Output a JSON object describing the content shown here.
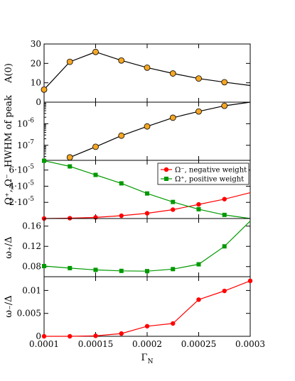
{
  "colors": {
    "orange": "#F5A623",
    "red": "#FF0000",
    "green": "#009900",
    "black": "#000000"
  },
  "chart_data": [
    {
      "type": "line",
      "ylabel": "A(0)",
      "xlim": [
        0.0001,
        0.0003
      ],
      "ylim": [
        0,
        30
      ],
      "yticks": [
        {
          "value": 0,
          "label": "0"
        },
        {
          "value": 10,
          "label": "10"
        },
        {
          "value": 20,
          "label": "20"
        },
        {
          "value": 30,
          "label": "30"
        }
      ],
      "series": [
        {
          "color": "#000000",
          "marker": "circle",
          "marker_fill": "#F5A623",
          "x": [
            0.0001,
            0.000125,
            0.00015,
            0.000175,
            0.0002,
            0.000225,
            0.00025,
            0.000275,
            0.0003
          ],
          "y": [
            6.5,
            20.8,
            25.9,
            21.5,
            17.8,
            14.8,
            12.2,
            10.3,
            8.6
          ],
          "markers": [
            true,
            true,
            true,
            true,
            true,
            true,
            true,
            true,
            false
          ]
        }
      ]
    },
    {
      "type": "line",
      "ylabel": "HWHM of peak",
      "yscale": "log",
      "xlim": [
        0.0001,
        0.0003
      ],
      "ylim": [
        2e-08,
        1e-05
      ],
      "yticks": [
        {
          "value": 1e-07,
          "label": "10",
          "exp": "-7"
        },
        {
          "value": 1e-06,
          "label": "10",
          "exp": "-6"
        }
      ],
      "series": [
        {
          "color": "#000000",
          "marker": "circle",
          "marker_fill": "#F5A623",
          "x": [
            0.000125,
            0.00015,
            0.000175,
            0.0002,
            0.000225,
            0.00025,
            0.000275,
            0.0003
          ],
          "y": [
            2.75e-08,
            8.5e-08,
            2.8e-07,
            7.5e-07,
            1.9e-06,
            3.7e-06,
            6.8e-06,
            1e-05
          ],
          "markers": [
            true,
            true,
            true,
            true,
            true,
            true,
            true,
            false
          ]
        }
      ]
    },
    {
      "type": "line",
      "ylabel": "Ω⁺, Ω⁻",
      "xlim": [
        0.0001,
        0.0003
      ],
      "ylim": [
        0,
        7.2e-05
      ],
      "yticks": [
        {
          "value": 2e-05,
          "label": "2·10",
          "exp": "-5"
        },
        {
          "value": 4e-05,
          "label": "4·10",
          "exp": "-5"
        },
        {
          "value": 6e-05,
          "label": "6·10",
          "exp": "-5"
        }
      ],
      "legend": {
        "position": "top-right"
      },
      "series": [
        {
          "name": "Ω⁻, negative weight",
          "color": "#FF0000",
          "marker": "circle",
          "marker_fill": "#FF0000",
          "x": [
            0.0001,
            0.000125,
            0.00015,
            0.000175,
            0.0002,
            0.000225,
            0.00025,
            0.000275,
            0.0003
          ],
          "y": [
            0.0,
            4e-07,
            1.4e-06,
            3.5e-06,
            6.5e-06,
            1.1e-05,
            1.75e-05,
            2.4e-05,
            3.2e-05
          ],
          "markers": [
            true,
            true,
            true,
            true,
            true,
            true,
            true,
            true,
            false
          ]
        },
        {
          "name": "Ω⁺, positive weight",
          "color": "#009900",
          "marker": "square",
          "marker_fill": "#009900",
          "x": [
            0.0001,
            0.000125,
            0.00015,
            0.000175,
            0.0002,
            0.000225,
            0.00025,
            0.000275,
            0.0003
          ],
          "y": [
            7.15e-05,
            6.45e-05,
            5.4e-05,
            4.35e-05,
            3.1e-05,
            2.05e-05,
            1.15e-05,
            4.5e-06,
            0.0
          ],
          "markers": [
            true,
            true,
            true,
            true,
            true,
            true,
            true,
            true,
            false
          ]
        }
      ]
    },
    {
      "type": "line",
      "ylabel": "ω₊/Δ",
      "xlim": [
        0.0001,
        0.0003
      ],
      "ylim": [
        0.06,
        0.175
      ],
      "yticks": [
        {
          "value": 0.08,
          "label": "0.08"
        },
        {
          "value": 0.12,
          "label": "0.12"
        },
        {
          "value": 0.16,
          "label": "0.16"
        }
      ],
      "series": [
        {
          "color": "#009900",
          "marker": "square",
          "marker_fill": "#009900",
          "x": [
            0.0001,
            0.000125,
            0.00015,
            0.000175,
            0.0002,
            0.000225,
            0.00025,
            0.000275,
            0.0003
          ],
          "y": [
            0.081,
            0.077,
            0.0735,
            0.0715,
            0.071,
            0.075,
            0.0845,
            0.12,
            0.17
          ],
          "markers": [
            true,
            true,
            true,
            true,
            true,
            true,
            true,
            true,
            false
          ]
        }
      ]
    },
    {
      "type": "line",
      "ylabel": "ω₋/Δ",
      "xlabel": "Γ",
      "xlabel_sub": "N",
      "xlim": [
        0.0001,
        0.0003
      ],
      "ylim": [
        0,
        0.013
      ],
      "yticks": [
        {
          "value": 0,
          "label": "0"
        },
        {
          "value": 0.005,
          "label": "0.005"
        },
        {
          "value": 0.01,
          "label": "0.01"
        }
      ],
      "xticks": [
        {
          "value": 0.0001,
          "label": "0.0001"
        },
        {
          "value": 0.00015,
          "label": "0.00015"
        },
        {
          "value": 0.0002,
          "label": "0.0002"
        },
        {
          "value": 0.00025,
          "label": "0.00025"
        },
        {
          "value": 0.0003,
          "label": "0.0003"
        }
      ],
      "series": [
        {
          "color": "#FF0000",
          "marker": "circle",
          "marker_fill": "#FF0000",
          "x": [
            0.0001,
            0.000125,
            0.00015,
            0.000175,
            0.0002,
            0.000225,
            0.00025,
            0.000275,
            0.0003
          ],
          "y": [
            0.0,
            0.0,
            0.0001,
            0.0006,
            0.0022,
            0.0028,
            0.008,
            0.0099,
            0.0121
          ],
          "markers": [
            true,
            true,
            true,
            true,
            true,
            true,
            true,
            true,
            true
          ]
        }
      ]
    }
  ]
}
